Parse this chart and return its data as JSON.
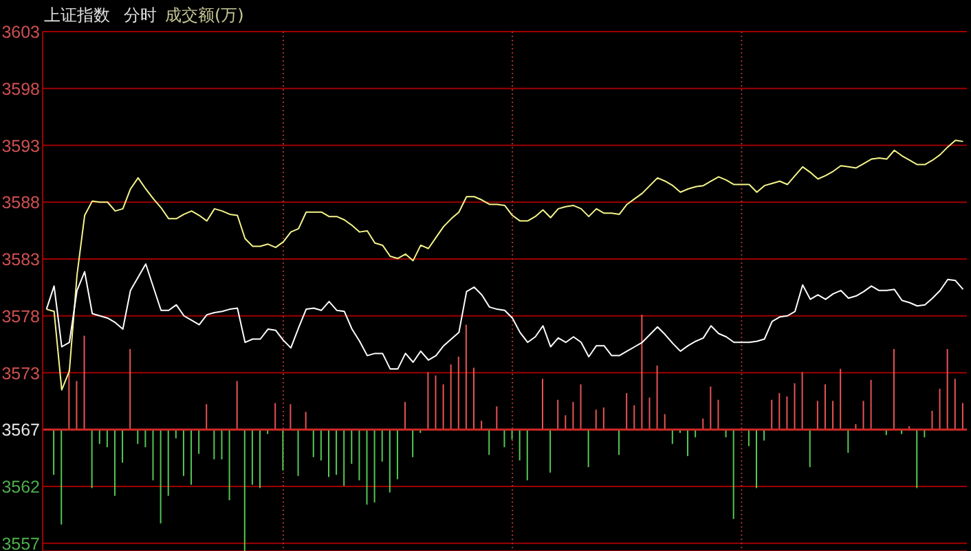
{
  "chart_data": {
    "type": "line",
    "title": "上证指数",
    "subtitle": "分时",
    "annotations": [
      "成交额(万)"
    ],
    "categories": [
      null,
      null,
      null,
      null,
      null,
      null,
      null,
      null,
      null,
      null,
      null,
      null,
      null,
      null,
      null,
      null,
      null,
      null,
      null,
      null,
      null,
      null,
      null,
      null,
      null,
      null,
      null,
      null,
      null,
      null,
      null,
      null,
      null,
      null,
      null,
      null,
      null,
      null,
      null,
      null,
      null,
      null,
      null,
      null,
      null,
      null,
      null,
      null,
      null,
      null,
      null,
      null,
      null,
      null,
      null,
      null,
      null,
      null,
      null,
      null,
      null,
      null,
      null,
      null,
      null,
      null,
      null,
      null,
      null,
      null,
      null,
      null,
      null,
      null,
      null,
      null,
      null,
      null,
      null,
      null,
      null,
      null,
      null,
      null,
      null,
      null,
      null,
      null,
      null,
      null,
      null,
      null,
      null,
      null,
      null,
      null,
      null,
      null,
      null,
      null,
      null,
      null,
      null,
      null,
      null,
      null,
      null,
      null,
      null,
      null,
      null,
      null,
      null,
      null,
      null,
      null,
      null,
      null,
      null,
      null,
      null
    ],
    "ylim": [
      3556.4,
      3603.45
    ],
    "yticks": [
      {
        "value": 3557.1,
        "label": "3557"
      },
      {
        "value": 3562.25,
        "label": "3562"
      },
      {
        "value": 3567.4,
        "label": "3567"
      },
      {
        "value": 3572.55,
        "label": "3573"
      },
      {
        "value": 3577.7,
        "label": "3578"
      },
      {
        "value": 3582.85,
        "label": "3583"
      },
      {
        "value": 3588.0,
        "label": "3588"
      },
      {
        "value": 3593.15,
        "label": "3593"
      },
      {
        "value": 3598.3,
        "label": "3598"
      },
      {
        "value": 3603.45,
        "label": "3603"
      }
    ],
    "grid": true,
    "tick_labels": "y",
    "ref_lines": [
      {
        "axis": "y",
        "value": 3567.4,
        "color": "#d02828"
      }
    ],
    "series": [
      {
        "type": "bar",
        "values": [
          null,
          -4.1,
          -8.6,
          5.4,
          4.4,
          8.5,
          -5.3,
          -1.3,
          -1.6,
          -6.0,
          -3.0,
          7.3,
          -1.3,
          -1.6,
          -4.6,
          -8.5,
          -6.0,
          -0.8,
          -4.2,
          -5.0,
          -2.2,
          2.3,
          -2.7,
          -2.7,
          -6.4,
          4.4,
          -11.0,
          -5.0,
          -5.3,
          -0.4,
          2.4,
          -3.7,
          2.3,
          -4.2,
          1.6,
          -2.5,
          -2.8,
          -4.3,
          -4.1,
          -5.1,
          -3.1,
          -4.6,
          -6.8,
          -6.6,
          -2.9,
          -5.7,
          -4.5,
          2.5,
          -2.5,
          -0.3,
          5.2,
          4.9,
          4.1,
          5.9,
          6.6,
          9.5,
          5.6,
          0.8,
          -2.3,
          2.1,
          -1.6,
          -0.9,
          -2.8,
          -4.6,
          null,
          4.6,
          -3.9,
          2.7,
          1.3,
          2.5,
          4.1,
          -3.4,
          1.8,
          2.0,
          null,
          -2.3,
          3.3,
          2.2,
          10.4,
          2.9,
          5.8,
          1.4,
          -1.3,
          -0.3,
          -2.4,
          -0.7,
          1.0,
          3.9,
          2.7,
          -0.7,
          -8.1,
          null,
          -1.5,
          -5.3,
          -1.0,
          2.7,
          3.3,
          3.0,
          4.2,
          5.2,
          -3.4,
          2.6,
          4.1,
          2.6,
          5.5,
          -2.1,
          0.5,
          2.6,
          4.5,
          null,
          -0.5,
          7.3,
          -0.4,
          0.3,
          -5.3,
          -0.7,
          1.7,
          3.7,
          7.3,
          4.6,
          2.4
        ],
        "colors": [
          null,
          "#54c854",
          "#54c854",
          "#e85454",
          "#e85454",
          "#e85454",
          "#54c854",
          "#54c854",
          "#54c854",
          "#54c854",
          "#54c854",
          "#e85454",
          "#54c854",
          "#54c854",
          "#54c854",
          "#54c854",
          "#54c854",
          "#54c854",
          "#54c854",
          "#54c854",
          "#54c854",
          "#e85454",
          "#54c854",
          "#54c854",
          "#54c854",
          "#e85454",
          "#54c854",
          "#54c854",
          "#54c854",
          "#54c854",
          "#e85454",
          "#54c854",
          "#e85454",
          "#54c854",
          "#e85454",
          "#54c854",
          "#54c854",
          "#54c854",
          "#54c854",
          "#54c854",
          "#54c854",
          "#54c854",
          "#54c854",
          "#54c854",
          "#54c854",
          "#54c854",
          "#54c854",
          "#e85454",
          "#54c854",
          "#54c854",
          "#e85454",
          "#e85454",
          "#e85454",
          "#e85454",
          "#e85454",
          "#e85454",
          "#e85454",
          "#e85454",
          "#54c854",
          "#e85454",
          "#54c854",
          "#54c854",
          "#54c854",
          "#54c854",
          null,
          "#e85454",
          "#54c854",
          "#e85454",
          "#e85454",
          "#e85454",
          "#e85454",
          "#54c854",
          "#e85454",
          "#e85454",
          null,
          "#54c854",
          "#e85454",
          "#e85454",
          "#e85454",
          "#e85454",
          "#e85454",
          "#e85454",
          "#54c854",
          "#54c854",
          "#54c854",
          "#54c854",
          "#e85454",
          "#e85454",
          "#e85454",
          "#54c854",
          "#54c854",
          null,
          "#54c854",
          "#54c854",
          "#54c854",
          "#e85454",
          "#e85454",
          "#e85454",
          "#e85454",
          "#e85454",
          "#54c854",
          "#e85454",
          "#e85454",
          "#e85454",
          "#e85454",
          "#54c854",
          "#e85454",
          "#e85454",
          "#e85454",
          null,
          "#54c854",
          "#e85454",
          "#54c854",
          "#e85454",
          "#54c854",
          "#54c854",
          "#e85454",
          "#e85454",
          "#e85454",
          "#e85454",
          "#e85454"
        ],
        "base": [
          null,
          3567.4,
          3567.4,
          3567.4,
          3567.4,
          3567.4,
          3567.4,
          3567.4,
          3567.4,
          3567.4,
          3567.4,
          3567.4,
          3567.4,
          3567.4,
          3567.4,
          3567.4,
          3567.4,
          3567.4,
          3567.4,
          3567.4,
          3567.4,
          3567.4,
          3567.4,
          3567.4,
          3567.4,
          3567.4,
          3567.4,
          3567.4,
          3567.4,
          3567.4,
          3567.4,
          3567.4,
          3567.4,
          3567.4,
          3567.4,
          3567.4,
          3567.4,
          3567.4,
          3567.4,
          3567.4,
          3567.4,
          3567.4,
          3567.4,
          3567.4,
          3567.4,
          3567.4,
          3567.4,
          3567.4,
          3567.4,
          3567.4,
          3567.4,
          3567.4,
          3567.4,
          3567.4,
          3567.4,
          3567.4,
          3567.4,
          3567.4,
          3567.4,
          3567.4,
          3567.4,
          3567.4,
          3567.4,
          3567.4,
          null,
          3567.4,
          3567.4,
          3567.4,
          3567.4,
          3567.4,
          3567.4,
          3567.4,
          3567.4,
          3567.4,
          null,
          3567.4,
          3567.4,
          3567.4,
          3567.4,
          3567.4,
          3567.4,
          3567.4,
          3567.4,
          3567.4,
          3567.4,
          3567.4,
          3567.4,
          3567.4,
          3567.4,
          3567.4,
          3567.4,
          null,
          3567.4,
          3567.4,
          3567.4,
          3567.4,
          3567.4,
          3567.4,
          3567.4,
          3567.4,
          3567.4,
          3567.4,
          3567.4,
          3567.4,
          3567.4,
          3567.4,
          3567.4,
          3567.4,
          3567.4,
          null,
          3567.4,
          3567.4,
          3567.4,
          3567.4,
          3567.4,
          3567.4,
          3567.4,
          3567.4,
          3567.4,
          3567.4,
          3567.4
        ]
      },
      {
        "color": "#f5f58c",
        "values": [
          3578.3,
          3578.1,
          3571.0,
          3572.7,
          3581.4,
          3586.8,
          3588.1,
          3588.0,
          3588.0,
          3587.2,
          3587.4,
          3589.2,
          3590.2,
          3589.2,
          3588.3,
          3587.5,
          3586.5,
          3586.5,
          3586.9,
          3587.2,
          3586.8,
          3586.3,
          3587.4,
          3587.2,
          3586.9,
          3586.8,
          3584.7,
          3584.0,
          3584.0,
          3584.2,
          3583.9,
          3584.4,
          3585.3,
          3585.6,
          3587.1,
          3587.1,
          3587.1,
          3586.7,
          3586.7,
          3586.4,
          3585.9,
          3585.3,
          3585.4,
          3584.3,
          3584.1,
          3583.1,
          3582.9,
          3583.3,
          3582.7,
          3584.1,
          3583.8,
          3584.8,
          3585.8,
          3586.5,
          3587.1,
          3588.5,
          3588.5,
          3588.2,
          3587.8,
          3587.8,
          3587.7,
          3586.8,
          3586.3,
          3586.3,
          3586.7,
          3587.3,
          3586.6,
          3587.4,
          3587.6,
          3587.7,
          3587.4,
          3586.7,
          3587.4,
          3587.0,
          3587.0,
          3586.9,
          3587.8,
          3588.3,
          3588.8,
          3589.5,
          3590.2,
          3589.9,
          3589.5,
          3588.9,
          3589.2,
          3589.4,
          3589.5,
          3589.9,
          3590.3,
          3590.0,
          3589.6,
          3589.6,
          3589.6,
          3588.9,
          3589.5,
          3589.7,
          3589.9,
          3589.6,
          3590.4,
          3591.2,
          3590.7,
          3590.1,
          3590.4,
          3590.8,
          3591.3,
          3591.2,
          3591.1,
          3591.5,
          3591.9,
          3592.0,
          3591.9,
          3592.7,
          3592.2,
          3591.8,
          3591.4,
          3591.4,
          3591.8,
          3592.3,
          3593.0,
          3593.6,
          3593.5
        ]
      },
      {
        "color": "#ffffff",
        "values": [
          3578.3,
          3580.4,
          3574.9,
          3575.3,
          3580.0,
          3581.7,
          3577.9,
          3577.7,
          3577.5,
          3577.1,
          3576.5,
          3580.0,
          3581.2,
          3582.4,
          3580.3,
          3578.2,
          3578.2,
          3578.7,
          3577.7,
          3577.3,
          3576.9,
          3577.8,
          3578.0,
          3578.1,
          3578.3,
          3578.4,
          3575.3,
          3575.6,
          3575.6,
          3576.5,
          3576.4,
          3575.5,
          3574.8,
          3576.6,
          3578.3,
          3578.4,
          3578.2,
          3579.0,
          3578.2,
          3578.1,
          3576.5,
          3575.4,
          3574.1,
          3574.3,
          3574.3,
          3572.9,
          3572.9,
          3574.3,
          3573.5,
          3574.5,
          3573.7,
          3574.1,
          3575.0,
          3575.6,
          3576.2,
          3579.9,
          3580.3,
          3579.6,
          3578.5,
          3578.3,
          3578.2,
          3577.5,
          3576.2,
          3575.3,
          3575.8,
          3576.8,
          3574.9,
          3575.7,
          3575.3,
          3575.8,
          3575.3,
          3574.0,
          3575.0,
          3575.0,
          3574.1,
          3574.1,
          3574.5,
          3574.9,
          3575.3,
          3576.0,
          3576.7,
          3576.0,
          3575.2,
          3574.5,
          3575.0,
          3575.4,
          3575.7,
          3576.8,
          3576.1,
          3575.8,
          3575.3,
          3575.3,
          3575.3,
          3575.4,
          3575.6,
          3577.2,
          3577.6,
          3577.7,
          3578.1,
          3580.5,
          3579.2,
          3579.6,
          3579.2,
          3579.7,
          3580.0,
          3579.3,
          3579.5,
          3579.9,
          3580.4,
          3580.0,
          3580.0,
          3580.1,
          3579.1,
          3578.9,
          3578.6,
          3578.7,
          3579.3,
          3580.0,
          3581.0,
          3580.9,
          3580.1
        ]
      }
    ]
  }
}
